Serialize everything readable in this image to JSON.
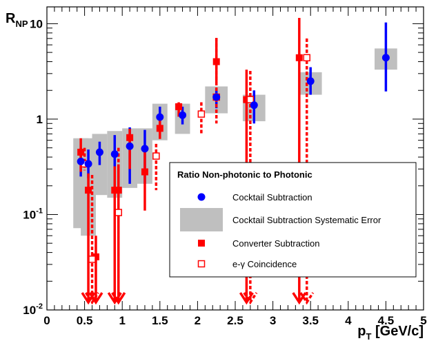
{
  "chart_data": {
    "type": "scatter",
    "x_axis": {
      "label_main": "p",
      "label_sub": "T",
      "label_units": " [GeV/c]",
      "range": [
        0,
        5
      ],
      "scale": "linear",
      "tick_labels": [
        "0",
        "0.5",
        "1",
        "1.5",
        "2",
        "2.5",
        "3",
        "3.5",
        "4",
        "4.5",
        "5"
      ]
    },
    "y_axis": {
      "label_main": "R",
      "label_sub": "NP",
      "range": [
        0.01,
        15
      ],
      "scale": "log",
      "tick_labels": [
        {
          "base": "10",
          "exp": "-2",
          "value": 0.01
        },
        {
          "base": "10",
          "exp": "-1",
          "value": 0.1
        },
        {
          "base": "1",
          "exp": "",
          "value": 1
        },
        {
          "base": "10",
          "exp": "",
          "value": 10
        }
      ]
    },
    "legend": {
      "title": "Ratio Non-photonic to Photonic",
      "placement": "bottom-right",
      "entries": [
        {
          "label": "Cocktail Subtraction",
          "marker": "blue-circle"
        },
        {
          "label": "Cocktail Subtraction Systematic Error",
          "marker": "gray-box"
        },
        {
          "label": "Converter Subtraction",
          "marker": "red-square"
        },
        {
          "label": "e-γ Coincidence",
          "marker": "open-red-square"
        }
      ]
    },
    "series": [
      {
        "name": "Cocktail Subtraction",
        "color": "#0000ff",
        "style": "solid",
        "points": [
          {
            "x": 0.45,
            "y": 0.36,
            "lo": 0.25,
            "hi": 0.5
          },
          {
            "x": 0.55,
            "y": 0.34,
            "lo": 0.24,
            "hi": 0.48
          },
          {
            "x": 0.7,
            "y": 0.45,
            "lo": 0.33,
            "hi": 0.58
          },
          {
            "x": 0.9,
            "y": 0.43,
            "lo": 0.17,
            "hi": 0.68
          },
          {
            "x": 1.1,
            "y": 0.52,
            "lo": 0.21,
            "hi": 0.82
          },
          {
            "x": 1.3,
            "y": 0.49,
            "lo": 0.21,
            "hi": 0.77
          },
          {
            "x": 1.5,
            "y": 1.05,
            "lo": 0.73,
            "hi": 1.35
          },
          {
            "x": 1.8,
            "y": 1.1,
            "lo": 0.88,
            "hi": 1.35
          },
          {
            "x": 2.25,
            "y": 1.7,
            "lo": 1.3,
            "hi": 2.1
          },
          {
            "x": 2.75,
            "y": 1.4,
            "lo": 0.9,
            "hi": 2.0
          },
          {
            "x": 3.5,
            "y": 2.5,
            "lo": 1.8,
            "hi": 3.5
          },
          {
            "x": 4.5,
            "y": 4.4,
            "lo": 1.95,
            "hi": 10.3
          }
        ]
      },
      {
        "name": "Cocktail Subtraction Systematic Error",
        "color": "#bfbfbf",
        "style": "box",
        "boxes": [
          {
            "x0": 0.35,
            "x1": 0.55,
            "lo": 0.072,
            "hi": 0.63
          },
          {
            "x0": 0.45,
            "x1": 0.65,
            "lo": 0.06,
            "hi": 0.63
          },
          {
            "x0": 0.6,
            "x1": 0.8,
            "lo": 0.16,
            "hi": 0.7
          },
          {
            "x0": 0.8,
            "x1": 1.0,
            "lo": 0.15,
            "hi": 0.75
          },
          {
            "x0": 1.0,
            "x1": 1.2,
            "lo": 0.19,
            "hi": 0.8
          },
          {
            "x0": 1.2,
            "x1": 1.4,
            "lo": 0.21,
            "hi": 0.8
          },
          {
            "x0": 1.4,
            "x1": 1.6,
            "lo": 0.6,
            "hi": 1.45
          },
          {
            "x0": 1.7,
            "x1": 1.9,
            "lo": 0.7,
            "hi": 1.45
          },
          {
            "x0": 2.1,
            "x1": 2.4,
            "lo": 1.15,
            "hi": 2.2
          },
          {
            "x0": 2.6,
            "x1": 2.9,
            "lo": 0.95,
            "hi": 1.8
          },
          {
            "x0": 3.35,
            "x1": 3.65,
            "lo": 1.8,
            "hi": 3.1
          },
          {
            "x0": 4.35,
            "x1": 4.65,
            "lo": 3.3,
            "hi": 5.5
          }
        ]
      },
      {
        "name": "Converter Subtraction",
        "color": "#ff0000",
        "style": "solid-error",
        "points": [
          {
            "x": 0.45,
            "y": 0.45,
            "lo": 0.28,
            "hi": 0.63
          },
          {
            "x": 0.55,
            "y": 0.18,
            "lo": 0.012,
            "hi": 0.27,
            "arrow": true
          },
          {
            "x": 0.65,
            "y": 0.036,
            "lo": 0.012,
            "hi": 0.06,
            "arrow": true
          },
          {
            "x": 0.9,
            "y": 0.18,
            "lo": 0.012,
            "hi": 0.32,
            "arrow": true
          },
          {
            "x": 0.95,
            "y": 0.18,
            "lo": 0.012,
            "hi": 0.32,
            "arrow": true
          },
          {
            "x": 1.1,
            "y": 0.64,
            "lo": 0.3,
            "hi": 0.79
          },
          {
            "x": 1.3,
            "y": 0.28,
            "lo": 0.11,
            "hi": 0.53
          },
          {
            "x": 1.5,
            "y": 0.8,
            "lo": 0.62,
            "hi": 1.0
          },
          {
            "x": 1.75,
            "y": 1.35,
            "lo": 1.06,
            "hi": 1.5
          },
          {
            "x": 2.25,
            "y": 4.0,
            "lo": 2.4,
            "hi": 7.0
          },
          {
            "x": 2.65,
            "y": 1.6,
            "lo": 0.012,
            "hi": 3.3,
            "arrow": true
          },
          {
            "x": 3.35,
            "y": 4.4,
            "lo": 0.012,
            "hi": 11.5,
            "arrow": true
          }
        ]
      },
      {
        "name": "e-γ Coincidence",
        "color": "#ff0000",
        "style": "dashed-error",
        "points": [
          {
            "x": 0.5,
            "y": 0.34,
            "lo": 0.29,
            "hi": 0.5
          },
          {
            "x": 0.6,
            "y": 0.034,
            "lo": 0.012,
            "hi": 0.26,
            "arrow": true
          },
          {
            "x": 0.95,
            "y": 0.105,
            "lo": 0.012,
            "hi": 0.5,
            "arrow": true
          },
          {
            "x": 1.45,
            "y": 0.41,
            "lo": 0.18,
            "hi": 0.55
          },
          {
            "x": 2.05,
            "y": 1.13,
            "lo": 0.7,
            "hi": 1.5
          },
          {
            "x": 2.25,
            "y": 1.7,
            "lo": 0.9,
            "hi": 7.1
          },
          {
            "x": 2.7,
            "y": 1.6,
            "lo": 0.012,
            "hi": 3.2,
            "arrow": true
          },
          {
            "x": 3.45,
            "y": 4.4,
            "lo": 0.012,
            "hi": 7.0,
            "arrow": true
          }
        ]
      }
    ]
  }
}
